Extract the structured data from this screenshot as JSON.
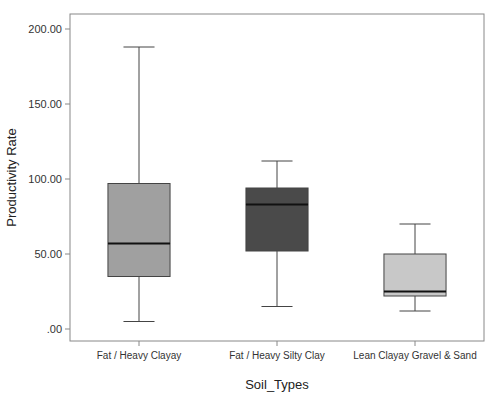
{
  "chart_data": {
    "type": "box",
    "xlabel": "Soil_Types",
    "ylabel": "Productivity Rate",
    "categories": [
      "Fat / Heavy Clayay",
      "Fat / Heavy Silty Clay",
      "Lean Clayay Gravel & Sand"
    ],
    "boxes": [
      {
        "whislo": 5,
        "q1": 35,
        "med": 57,
        "q3": 97,
        "whishi": 188
      },
      {
        "whislo": 15,
        "q1": 52,
        "med": 83,
        "q3": 94,
        "whishi": 112
      },
      {
        "whislo": 12,
        "q1": 22,
        "med": 25,
        "q3": 50,
        "whishi": 70
      }
    ],
    "colors": [
      "#a0a0a0",
      "#4a4a4a",
      "#c8c8c8"
    ],
    "ylim": [
      -8,
      210
    ],
    "yticks": [
      {
        "value": 0,
        "label": ".00"
      },
      {
        "value": 50,
        "label": "50.00"
      },
      {
        "value": 100,
        "label": "100.00"
      },
      {
        "value": 150,
        "label": "150.00"
      },
      {
        "value": 200,
        "label": "200.00"
      }
    ],
    "grid": false
  }
}
